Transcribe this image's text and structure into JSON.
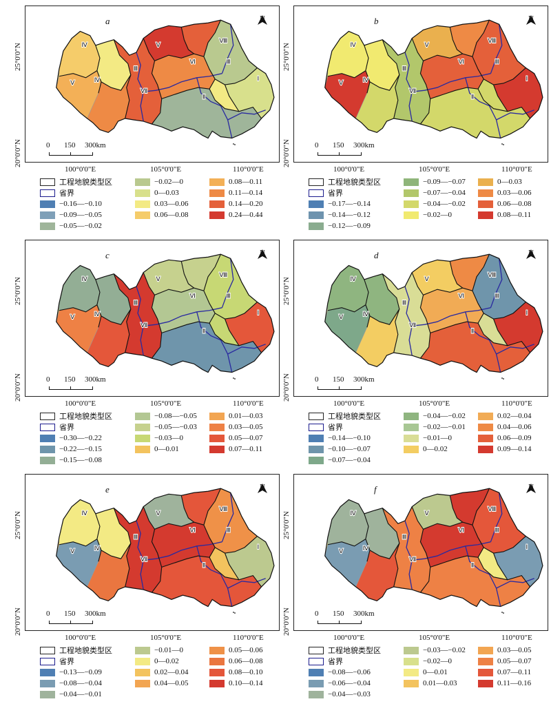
{
  "north_label": "N",
  "lat_labels": [
    "25°0'0\"N",
    "20°0'0\"N"
  ],
  "lon_labels": [
    "100°0'0\"E",
    "105°0'0\"E",
    "110°0'0\"E"
  ],
  "scale_labels": [
    "0",
    "150",
    "300km"
  ],
  "region_labels": [
    "Ⅰ",
    "Ⅱ",
    "Ⅲ",
    "Ⅳ",
    "Ⅴ",
    "Ⅵ",
    "Ⅶ",
    "Ⅷ"
  ],
  "legend_common": {
    "zone_boundary": "工程地貌类型区",
    "province_boundary": "省界"
  },
  "panels": [
    {
      "letter": "a",
      "classes": [
        {
          "label": "−0.16—−0.10",
          "color": "#4f7fb3"
        },
        {
          "label": "−0.09—−0.05",
          "color": "#7fa0b8"
        },
        {
          "label": "−0.05—−0.02",
          "color": "#9fb59a"
        },
        {
          "label": "−0.02—0",
          "color": "#b9c98f"
        },
        {
          "label": "0—0.03",
          "color": "#d8e08c"
        },
        {
          "label": "0.03—0.06",
          "color": "#f3ea84"
        },
        {
          "label": "0.06—0.08",
          "color": "#f5cc6a"
        },
        {
          "label": "0.08—0.11",
          "color": "#f3b057"
        },
        {
          "label": "0.11—0.14",
          "color": "#ee8a45"
        },
        {
          "label": "0.14—0.20",
          "color": "#e4603a"
        },
        {
          "label": "0.24—0.44",
          "color": "#d43a2f"
        }
      ]
    },
    {
      "letter": "b",
      "classes": [
        {
          "label": "−0.17—−0.14",
          "color": "#4f7fb3"
        },
        {
          "label": "−0.14—−0.12",
          "color": "#6e93ae"
        },
        {
          "label": "−0.12—−0.09",
          "color": "#8aac8f"
        },
        {
          "label": "−0.09—−0.07",
          "color": "#8fb57a"
        },
        {
          "label": "−0.07—−0.04",
          "color": "#b2c76b"
        },
        {
          "label": "−0.04—−0.02",
          "color": "#d3d86a"
        },
        {
          "label": "−0.02—0",
          "color": "#f1ea70"
        },
        {
          "label": "0—0.03",
          "color": "#eab04e"
        },
        {
          "label": "0.03—0.06",
          "color": "#ee8a45"
        },
        {
          "label": "0.06—0.08",
          "color": "#e4603a"
        },
        {
          "label": "0.08—0.11",
          "color": "#d43a2f"
        }
      ]
    },
    {
      "letter": "c",
      "classes": [
        {
          "label": "−0.30—−0.22",
          "color": "#4f7fb3"
        },
        {
          "label": "−0.22—−0.15",
          "color": "#6f95ab"
        },
        {
          "label": "−0.15—−0.08",
          "color": "#93ae95"
        },
        {
          "label": "−0.08—−0.05",
          "color": "#b3c793"
        },
        {
          "label": "−0.05—−0.03",
          "color": "#c6d18e"
        },
        {
          "label": "−0.03—0",
          "color": "#c7d874"
        },
        {
          "label": "0—0.01",
          "color": "#f3c35e"
        },
        {
          "label": "0.01—0.03",
          "color": "#f2a552"
        },
        {
          "label": "0.03—0.05",
          "color": "#ee8145"
        },
        {
          "label": "0.05—0.07",
          "color": "#e4573a"
        },
        {
          "label": "0.07—0.11",
          "color": "#d43a2f"
        }
      ]
    },
    {
      "letter": "d",
      "classes": [
        {
          "label": "−0.14—−0.10",
          "color": "#4f7fb3"
        },
        {
          "label": "−0.10—−0.07",
          "color": "#6f95ab"
        },
        {
          "label": "−0.07—−0.04",
          "color": "#7ea88a"
        },
        {
          "label": "−0.04—−0.02",
          "color": "#8fb580"
        },
        {
          "label": "−0.02—−0.01",
          "color": "#a8c794"
        },
        {
          "label": "−0.01—0",
          "color": "#d9dd96"
        },
        {
          "label": "0—0.02",
          "color": "#f3cd62"
        },
        {
          "label": "0.02—0.04",
          "color": "#f1ab55"
        },
        {
          "label": "0.04—0.06",
          "color": "#ee8a45"
        },
        {
          "label": "0.06—0.09",
          "color": "#e4603a"
        },
        {
          "label": "0.09—0.14",
          "color": "#d43a2f"
        }
      ]
    },
    {
      "letter": "e",
      "classes": [
        {
          "label": "−0.13—−0.09",
          "color": "#4f7fb3"
        },
        {
          "label": "−0.08—−0.04",
          "color": "#7a9cb2"
        },
        {
          "label": "−0.04—−0.01",
          "color": "#9fb39c"
        },
        {
          "label": "−0.01—0",
          "color": "#bcc98f"
        },
        {
          "label": "0—0.02",
          "color": "#f3ea84"
        },
        {
          "label": "0.02—0.04",
          "color": "#f3c35e"
        },
        {
          "label": "0.04—0.05",
          "color": "#f2a552"
        },
        {
          "label": "0.05—0.06",
          "color": "#ef9148"
        },
        {
          "label": "0.06—0.08",
          "color": "#ea7640"
        },
        {
          "label": "0.08—0.10",
          "color": "#e4563a"
        },
        {
          "label": "0.10—0.14",
          "color": "#d43a2f"
        }
      ]
    },
    {
      "letter": "f",
      "classes": [
        {
          "label": "−0.08—−0.06",
          "color": "#4f7fb3"
        },
        {
          "label": "−0.06—−0.04",
          "color": "#7a9cb2"
        },
        {
          "label": "−0.04—−0.03",
          "color": "#9fb39c"
        },
        {
          "label": "−0.03—−0.02",
          "color": "#bcc98f"
        },
        {
          "label": "−0.02—0",
          "color": "#d8e08c"
        },
        {
          "label": "0—0.01",
          "color": "#f3ea84"
        },
        {
          "label": "0.01—0.03",
          "color": "#f3c35e"
        },
        {
          "label": "0.03—0.05",
          "color": "#f2a552"
        },
        {
          "label": "0.05—0.07",
          "color": "#ee8145"
        },
        {
          "label": "0.07—0.11",
          "color": "#e4573a"
        },
        {
          "label": "0.11—0.16",
          "color": "#d43a2f"
        }
      ]
    }
  ]
}
